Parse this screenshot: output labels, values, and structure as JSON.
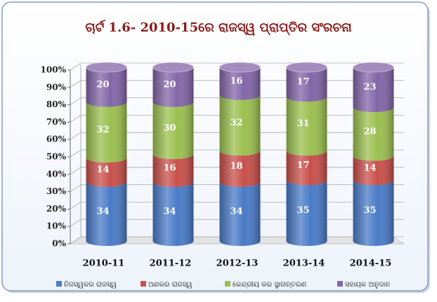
{
  "chart_data": {
    "type": "stacked-cylinder",
    "title": "ଚାର୍ଟ 1.6- 2010-15ରେ ରାଜସ୍ୱ ପ୍ରାପ୍ତିର ସଂରଚନା",
    "categories": [
      "2010-11",
      "2011-12",
      "2012-13",
      "2013-14",
      "2014-15"
    ],
    "series": [
      {
        "name": "ନିଜସ୍ୱକର ରାଜସ୍ୱ",
        "color": "#4a7bc8",
        "values": [
          34,
          34,
          34,
          35,
          35
        ]
      },
      {
        "name": "ଅଣକର ରାଜସ୍ୱ",
        "color": "#c9504b",
        "values": [
          14,
          16,
          18,
          17,
          14
        ]
      },
      {
        "name": "କେନ୍ଦ୍ରୀୟ କର ସ୍ଥାନାନ୍ତରଣ",
        "color": "#9bc04f",
        "values": [
          32,
          30,
          32,
          31,
          28
        ]
      },
      {
        "name": "ସହାୟକ ଅନୁଦାନ",
        "color": "#8366a8",
        "values": [
          20,
          20,
          16,
          17,
          23
        ]
      }
    ],
    "ylim": [
      0,
      100
    ],
    "yticks": [
      {
        "value": 0,
        "label": "0%"
      },
      {
        "value": 10,
        "label": "10%"
      },
      {
        "value": 20,
        "label": "20%"
      },
      {
        "value": 30,
        "label": "30%"
      },
      {
        "value": 40,
        "label": "40%"
      },
      {
        "value": 50,
        "label": "50%"
      },
      {
        "value": 60,
        "label": "60%"
      },
      {
        "value": 70,
        "label": "70%"
      },
      {
        "value": 80,
        "label": "80%"
      },
      {
        "value": 90,
        "label": "90%"
      },
      {
        "value": 100,
        "label": "100%"
      }
    ],
    "grid": true,
    "legend": "bottom"
  }
}
